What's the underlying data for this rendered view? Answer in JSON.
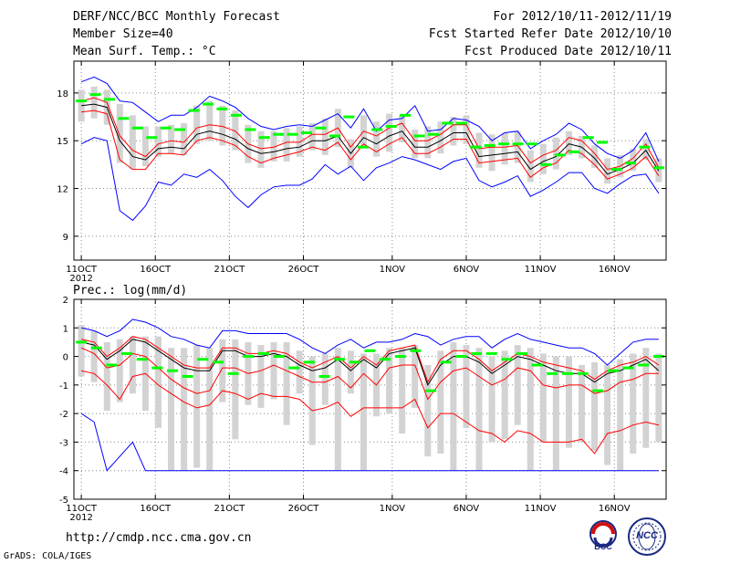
{
  "header": {
    "title": "DERF/NCC/BCC Monthly Forecast",
    "member_size": "Member Size=40",
    "variable": "Mean Surf. Temp.: °C",
    "period": "For 2012/10/11-2012/11/19",
    "refer_date": "Fcst Started Refer Date 2012/10/10",
    "produced_date": "Fcst Produced Date 2012/10/11"
  },
  "footer": {
    "url": "http://cmdp.ncc.cma.gov.cn",
    "credit": "GrADS: COLA/IGES",
    "logo_bcc": "BCC",
    "logo_ncc": "NCC"
  },
  "colors": {
    "ensemble": "#000000",
    "spread": "#ff0000",
    "envelope": "#0000ff",
    "bar": "#d3d3d3",
    "marker": "#00ff00"
  },
  "chart_data": [
    {
      "type": "line",
      "title": "Mean Surf. Temp.: °C",
      "x_tick_labels": [
        "11OCT",
        "16OCT",
        "21OCT",
        "26OCT",
        "1NOV",
        "6NOV",
        "11NOV",
        "16NOV"
      ],
      "x_tick_days": [
        1,
        6,
        11,
        16,
        22,
        27,
        32,
        37
      ],
      "x_sublabel": "2012",
      "xlim": [
        0.5,
        40.5
      ],
      "ylim": [
        7.5,
        20
      ],
      "y_ticks": [
        9,
        12,
        15,
        18
      ],
      "y_tick_labels": [
        "9",
        "12",
        "15",
        "18"
      ],
      "series": [
        {
          "name": "max",
          "color": "#0000ff",
          "values": [
            18.7,
            19.0,
            18.6,
            17.5,
            17.4,
            16.8,
            16.2,
            16.6,
            16.6,
            17.1,
            17.8,
            17.5,
            17.1,
            16.4,
            15.9,
            15.7,
            15.9,
            16.0,
            15.9,
            16.3,
            16.7,
            15.8,
            17.0,
            15.6,
            16.3,
            16.4,
            17.2,
            15.6,
            15.7,
            16.4,
            16.3,
            15.9,
            15.0,
            15.5,
            15.6,
            14.5,
            15.0,
            15.4,
            16.1,
            15.7,
            14.8,
            14.2,
            13.9,
            14.4,
            15.5,
            13.7
          ]
        },
        {
          "name": "ens_high",
          "color": "#ff0000",
          "values": [
            17.5,
            17.7,
            17.4,
            15.3,
            14.4,
            14.0,
            14.8,
            15.0,
            14.9,
            15.8,
            16.0,
            15.9,
            15.6,
            14.8,
            14.5,
            14.6,
            14.9,
            14.9,
            15.4,
            15.4,
            15.8,
            14.6,
            15.6,
            15.3,
            15.8,
            16.1,
            15.0,
            15.0,
            15.4,
            16.0,
            16.0,
            14.5,
            14.6,
            14.6,
            14.7,
            13.6,
            14.1,
            14.4,
            15.2,
            15.0,
            14.2,
            13.2,
            13.4,
            13.9,
            14.8,
            13.3
          ]
        },
        {
          "name": "ensemble_mean",
          "color": "#000000",
          "values": [
            17.2,
            17.3,
            17.1,
            15.0,
            14.0,
            13.8,
            14.5,
            14.6,
            14.5,
            15.4,
            15.6,
            15.4,
            15.1,
            14.5,
            14.2,
            14.3,
            14.5,
            14.6,
            15.0,
            15.0,
            15.3,
            14.2,
            15.2,
            14.8,
            15.3,
            15.6,
            14.6,
            14.6,
            15.0,
            15.5,
            15.5,
            14.0,
            14.1,
            14.2,
            14.3,
            13.2,
            13.7,
            14.0,
            14.8,
            14.6,
            13.9,
            12.9,
            13.2,
            13.6,
            14.4,
            13.1
          ]
        },
        {
          "name": "ens_low",
          "color": "#ff0000",
          "values": [
            16.8,
            16.9,
            16.7,
            13.8,
            13.2,
            13.2,
            14.2,
            14.2,
            14.1,
            15.0,
            15.2,
            15.0,
            14.7,
            14.0,
            13.6,
            13.9,
            14.1,
            14.3,
            14.6,
            14.4,
            14.9,
            13.8,
            14.8,
            14.3,
            14.8,
            15.2,
            14.2,
            14.2,
            14.6,
            15.1,
            15.1,
            13.6,
            13.7,
            13.8,
            13.9,
            12.7,
            13.3,
            13.6,
            14.4,
            14.2,
            13.5,
            12.6,
            12.9,
            13.3,
            14.0,
            12.8
          ]
        },
        {
          "name": "min",
          "color": "#0000ff",
          "values": [
            14.8,
            15.2,
            15.0,
            10.6,
            10.0,
            10.9,
            12.4,
            12.2,
            12.9,
            12.7,
            13.2,
            12.5,
            11.5,
            10.8,
            11.6,
            12.1,
            12.2,
            12.2,
            12.6,
            13.5,
            12.9,
            13.4,
            12.5,
            13.3,
            13.6,
            14.0,
            13.8,
            13.5,
            13.2,
            13.7,
            13.9,
            12.5,
            12.1,
            12.4,
            12.8,
            11.5,
            11.9,
            12.4,
            13.0,
            13.0,
            12.0,
            11.7,
            12.3,
            12.8,
            12.9,
            11.7
          ]
        }
      ],
      "bars_low": [
        16.2,
        16.4,
        16.0,
        13.6,
        13.2,
        13.4,
        14.0,
        14.2,
        14.1,
        14.8,
        15.0,
        14.7,
        14.4,
        13.6,
        13.3,
        13.7,
        13.7,
        14.0,
        14.4,
        14.1,
        14.6,
        13.3,
        14.6,
        14.0,
        14.3,
        14.9,
        13.9,
        13.9,
        14.2,
        14.7,
        14.8,
        13.3,
        13.1,
        13.5,
        13.6,
        12.4,
        12.9,
        13.2,
        14.1,
        13.9,
        13.3,
        12.3,
        12.7,
        13.1,
        13.8,
        12.4
      ],
      "bars_high": [
        18.2,
        18.4,
        18.2,
        17.3,
        16.6,
        15.9,
        15.9,
        16.0,
        16.1,
        17.2,
        17.5,
        17.2,
        16.9,
        16.0,
        15.6,
        15.6,
        15.8,
        15.9,
        16.1,
        16.4,
        17.0,
        15.1,
        16.6,
        16.2,
        16.7,
        16.6,
        15.7,
        15.9,
        16.2,
        16.5,
        16.6,
        15.5,
        15.4,
        15.5,
        15.6,
        14.4,
        14.8,
        15.2,
        15.6,
        15.3,
        14.7,
        13.9,
        14.1,
        14.5,
        15.1,
        13.9
      ],
      "markers": [
        17.5,
        17.9,
        17.6,
        16.4,
        15.8,
        15.2,
        15.8,
        15.7,
        16.9,
        17.3,
        17.0,
        16.6,
        15.7,
        15.2,
        15.4,
        15.4,
        15.5,
        15.8,
        15.3,
        16.5,
        14.6,
        15.7,
        15.9,
        16.6,
        15.3,
        15.4,
        16.1,
        16.1,
        14.6,
        14.7,
        14.8,
        14.8,
        14.8,
        13.5,
        14.1,
        14.3,
        15.2,
        14.9,
        13.2,
        13.6,
        14.6,
        13.3
      ]
    },
    {
      "type": "line",
      "title": "Prec.: log(mm/d)",
      "x_tick_labels": [
        "11OCT",
        "16OCT",
        "21OCT",
        "26OCT",
        "1NOV",
        "6NOV",
        "11NOV",
        "16NOV"
      ],
      "x_tick_days": [
        1,
        6,
        11,
        16,
        22,
        27,
        32,
        37
      ],
      "x_sublabel": "2012",
      "xlim": [
        0.5,
        40.5
      ],
      "ylim": [
        -5,
        2
      ],
      "y_ticks": [
        -5,
        -4,
        -3,
        -2,
        -1,
        0,
        1,
        2
      ],
      "y_tick_labels": [
        "-5",
        "-4",
        "-3",
        "-2",
        "-1",
        "0",
        "1",
        "2"
      ],
      "series": [
        {
          "name": "max",
          "color": "#0000ff",
          "values": [
            1.0,
            0.9,
            0.7,
            0.9,
            1.3,
            1.2,
            1.0,
            0.7,
            0.6,
            0.4,
            0.3,
            0.9,
            0.9,
            0.8,
            0.8,
            0.8,
            0.8,
            0.6,
            0.3,
            0.1,
            0.4,
            0.6,
            0.3,
            0.5,
            0.5,
            0.6,
            0.8,
            0.7,
            0.4,
            0.6,
            0.7,
            0.7,
            0.3,
            0.6,
            0.8,
            0.6,
            0.5,
            0.4,
            0.3,
            0.3,
            0.1,
            -0.3,
            0.1,
            0.5,
            0.6,
            0.6
          ]
        },
        {
          "name": "ens_high",
          "color": "#ff0000",
          "values": [
            0.6,
            0.5,
            0.0,
            0.3,
            0.7,
            0.6,
            0.3,
            0.0,
            -0.3,
            -0.4,
            -0.4,
            0.3,
            0.3,
            0.1,
            0.1,
            0.2,
            0.1,
            -0.2,
            -0.4,
            -0.2,
            0.0,
            -0.4,
            0.0,
            -0.3,
            0.2,
            0.3,
            0.4,
            -0.9,
            -0.1,
            0.2,
            0.2,
            -0.1,
            -0.5,
            -0.2,
            0.1,
            0.0,
            -0.2,
            -0.3,
            -0.4,
            -0.5,
            -0.8,
            -0.5,
            -0.3,
            -0.2,
            0.0,
            -0.3
          ]
        },
        {
          "name": "ensemble_mean",
          "color": "#000000",
          "values": [
            0.5,
            0.4,
            -0.1,
            0.2,
            0.6,
            0.5,
            0.2,
            -0.1,
            -0.4,
            -0.5,
            -0.5,
            0.2,
            0.2,
            0.0,
            0.0,
            0.1,
            0.0,
            -0.3,
            -0.5,
            -0.4,
            -0.1,
            -0.5,
            -0.1,
            -0.4,
            0.1,
            0.2,
            0.3,
            -1.0,
            -0.3,
            0.0,
            0.0,
            -0.2,
            -0.6,
            -0.3,
            0.0,
            -0.1,
            -0.3,
            -0.5,
            -0.6,
            -0.6,
            -0.9,
            -0.6,
            -0.5,
            -0.3,
            -0.1,
            -0.5
          ]
        },
        {
          "name": "ens_low",
          "color": "#ff0000",
          "values": [
            0.3,
            0.1,
            -0.4,
            -0.3,
            0.1,
            0.0,
            -0.4,
            -0.8,
            -1.1,
            -1.3,
            -1.2,
            -0.4,
            -0.4,
            -0.6,
            -0.5,
            -0.3,
            -0.5,
            -0.7,
            -0.9,
            -0.9,
            -0.7,
            -1.1,
            -0.6,
            -1.0,
            -0.4,
            -0.3,
            -0.3,
            -1.5,
            -0.9,
            -0.5,
            -0.4,
            -0.7,
            -1.0,
            -0.8,
            -0.4,
            -0.5,
            -1.0,
            -1.1,
            -1.0,
            -1.0,
            -1.3,
            -1.2,
            -0.9,
            -0.8,
            -0.6,
            -0.6
          ]
        },
        {
          "name": "ens_lower",
          "color": "#ff0000",
          "values": [
            -0.5,
            -0.6,
            -1.0,
            -1.5,
            -0.7,
            -0.6,
            -1.0,
            -1.3,
            -1.6,
            -1.8,
            -1.7,
            -1.2,
            -1.3,
            -1.5,
            -1.3,
            -1.4,
            -1.4,
            -1.5,
            -1.9,
            -1.8,
            -1.6,
            -2.1,
            -1.8,
            -1.8,
            -1.8,
            -1.8,
            -1.5,
            -2.5,
            -2.0,
            -2.0,
            -2.3,
            -2.6,
            -2.7,
            -3.0,
            -2.6,
            -2.7,
            -3.0,
            -3.0,
            -3.0,
            -2.9,
            -3.4,
            -2.7,
            -2.6,
            -2.4,
            -2.3,
            -2.4
          ]
        },
        {
          "name": "min",
          "color": "#0000ff",
          "values": [
            -2.0,
            -2.3,
            -4.0,
            -3.5,
            -3.0,
            -4.0,
            -4.0,
            -4.0,
            -4.0,
            -4.0,
            -4.0,
            -4.0,
            -4.0,
            -4.0,
            -4.0,
            -4.0,
            -4.0,
            -4.0,
            -4.0,
            -4.0,
            -4.0,
            -4.0,
            -4.0,
            -4.0,
            -4.0,
            -4.0,
            -4.0,
            -4.0,
            -4.0,
            -4.0,
            -4.0,
            -4.0,
            -4.0,
            -4.0,
            -4.0,
            -4.0,
            -4.0,
            -4.0,
            -4.0,
            -4.0,
            -4.0,
            -4.0,
            -4.0,
            -4.0,
            -4.0,
            -4.0
          ]
        }
      ],
      "bars_low": [
        -0.7,
        -0.9,
        -1.9,
        -1.6,
        -1.3,
        -1.9,
        -2.5,
        -4.0,
        -4.0,
        -3.9,
        -4.0,
        -1.6,
        -2.9,
        -1.7,
        -1.8,
        -1.5,
        -2.4,
        -1.3,
        -3.1,
        -1.7,
        -4.0,
        -1.3,
        -4.0,
        -2.1,
        -2.0,
        -2.7,
        -1.8,
        -3.5,
        -3.4,
        -4.0,
        -2.5,
        -4.0,
        -3.0,
        -2.9,
        -2.4,
        -4.0,
        -3.0,
        -4.0,
        -3.2,
        -3.0,
        -3.3,
        -3.8,
        -4.0,
        -3.4,
        -3.2,
        -3.0
      ],
      "bars_high": [
        1.1,
        0.9,
        0.5,
        0.6,
        0.7,
        0.7,
        0.7,
        0.3,
        0.3,
        0.4,
        0.3,
        0.6,
        0.6,
        0.5,
        0.4,
        0.5,
        0.5,
        0.2,
        0.0,
        0.1,
        0.3,
        0.2,
        0.1,
        0.1,
        0.3,
        0.3,
        0.4,
        -0.3,
        0.2,
        0.5,
        0.4,
        0.3,
        0.0,
        0.2,
        0.4,
        0.3,
        0.1,
        0.0,
        0.0,
        -0.3,
        -0.2,
        -0.3,
        -0.1,
        0.1,
        0.3,
        0.1
      ],
      "markers": [
        0.5,
        0.3,
        -0.3,
        0.1,
        -0.1,
        -0.4,
        -0.5,
        -0.7,
        -0.1,
        -0.2,
        -0.6,
        0.0,
        0.1,
        0.0,
        -0.4,
        -0.2,
        -0.7,
        -0.1,
        -0.2,
        0.2,
        -0.1,
        0.0,
        0.2,
        -1.2,
        -0.2,
        0.0,
        0.1,
        0.1,
        -0.1,
        0.1,
        -0.3,
        -0.6,
        -0.6,
        -0.6,
        -1.2,
        -0.5,
        -0.4,
        -0.3,
        0.0
      ]
    }
  ]
}
